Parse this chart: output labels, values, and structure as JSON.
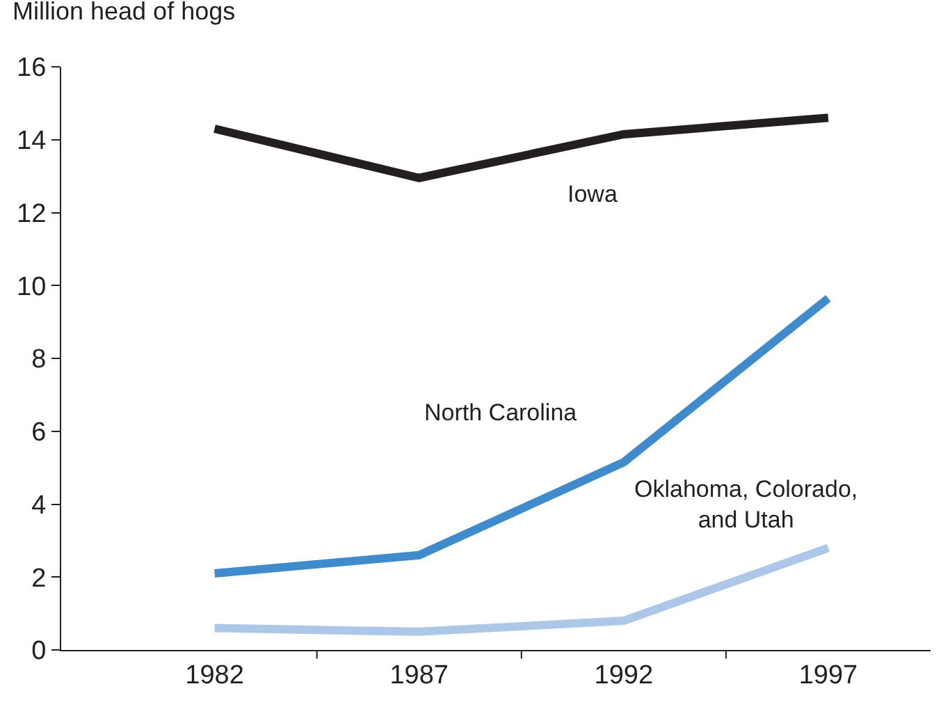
{
  "chart_data": {
    "type": "line",
    "ylabel": "Million head of hogs",
    "categories": [
      "1982",
      "1987",
      "1992",
      "1997"
    ],
    "series": [
      {
        "name": "Iowa",
        "color": "#231f20",
        "values": [
          14.3,
          12.95,
          14.15,
          14.6
        ]
      },
      {
        "name": "North Carolina",
        "color": "#3f8bcb",
        "values": [
          2.1,
          2.6,
          5.15,
          9.65
        ]
      },
      {
        "name": "Oklahoma, Colorado, and Utah",
        "color": "#adc7e9",
        "values": [
          0.6,
          0.5,
          0.8,
          2.8
        ]
      }
    ],
    "ylim": [
      0,
      16
    ],
    "yticks": [
      0,
      2,
      4,
      6,
      8,
      10,
      12,
      14,
      16
    ],
    "legend": false,
    "marker": "none",
    "line_style": "solid"
  }
}
